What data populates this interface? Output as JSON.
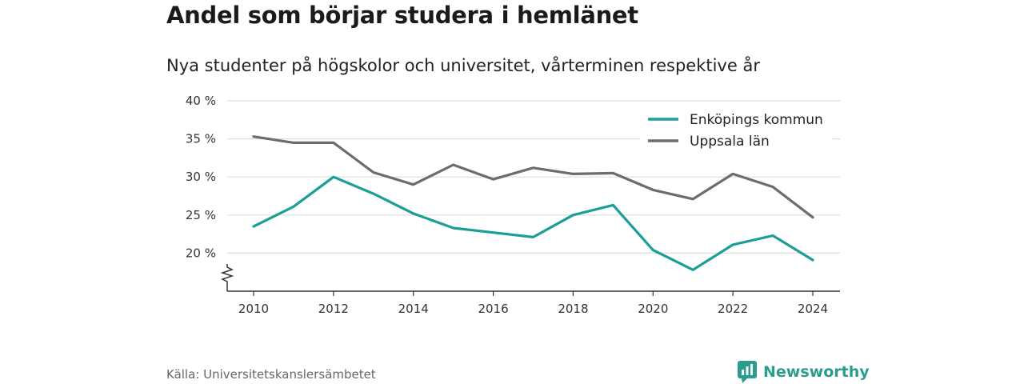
{
  "title": "Andel som börjar studera i hemlänet",
  "subtitle": "Nya studenter på högskolor och universitet, vårterminen respektive år",
  "source": "Källa: Universitetskanslersämbetet",
  "brand": {
    "name": "Newsworthy",
    "icon": "newsworthy-logo-icon"
  },
  "colors": {
    "enkoping": "#1a9e96",
    "uppsala": "#6b6b70",
    "grid": "#dddddd",
    "axis": "#333333"
  },
  "chart_data": {
    "type": "line",
    "x": [
      2010,
      2011,
      2012,
      2013,
      2014,
      2015,
      2016,
      2017,
      2018,
      2019,
      2020,
      2021,
      2022,
      2023,
      2024
    ],
    "x_ticks": [
      "2010",
      "2012",
      "2014",
      "2016",
      "2018",
      "2020",
      "2022",
      "2024"
    ],
    "y_ticks": [
      "20 %",
      "25 %",
      "30 %",
      "35 %",
      "40 %"
    ],
    "ylim": [
      15,
      40
    ],
    "axis_break": true,
    "grid": true,
    "legend_position": "top-right",
    "series": [
      {
        "name": "Enköpings kommun",
        "color": "#1a9e96",
        "values": [
          23.5,
          26.1,
          30.0,
          27.8,
          25.2,
          23.3,
          22.7,
          22.1,
          25.0,
          26.3,
          20.4,
          17.8,
          21.1,
          22.3,
          19.1
        ]
      },
      {
        "name": "Uppsala län",
        "color": "#6b6b70",
        "values": [
          35.3,
          34.5,
          34.5,
          30.6,
          29.0,
          31.6,
          29.7,
          31.2,
          30.4,
          30.5,
          28.3,
          27.1,
          30.4,
          28.7,
          24.7
        ]
      }
    ]
  }
}
